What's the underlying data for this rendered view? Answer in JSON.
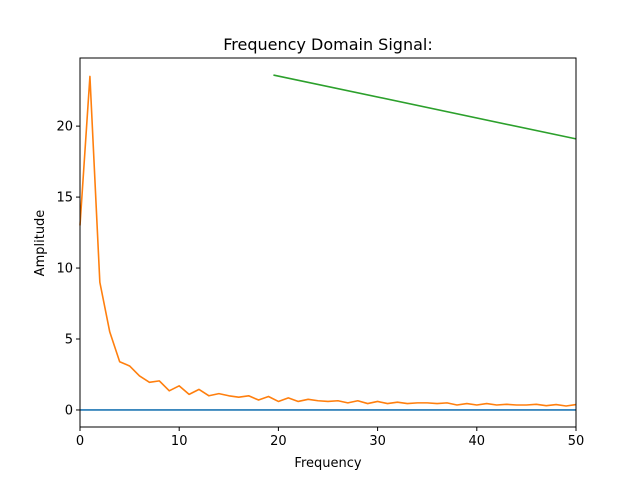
{
  "chart_data": {
    "type": "line",
    "title": "Frequency Domain Signal:",
    "xlabel": "Frequency",
    "ylabel": "Amplitude",
    "xlim": [
      0,
      50
    ],
    "ylim": [
      -1.2,
      24.8
    ],
    "xticks": [
      0,
      10,
      20,
      30,
      40,
      50
    ],
    "yticks": [
      0,
      5,
      10,
      15,
      20
    ],
    "ytick_labels": [
      "0",
      "5",
      "10",
      "15",
      "20"
    ],
    "grid": false,
    "series": [
      {
        "color": "#1f77b4",
        "x": [
          0,
          50
        ],
        "y": [
          0,
          0
        ]
      },
      {
        "color": "#ff7f0e",
        "x": [
          0,
          1,
          2,
          3,
          4,
          5,
          6,
          7,
          8,
          9,
          10,
          11,
          12,
          13,
          14,
          15,
          16,
          17,
          18,
          19,
          20,
          21,
          22,
          23,
          24,
          25,
          26,
          27,
          28,
          29,
          30,
          31,
          32,
          33,
          34,
          35,
          36,
          37,
          38,
          39,
          40,
          41,
          42,
          43,
          44,
          45,
          46,
          47,
          48,
          49,
          50
        ],
        "y": [
          13.0,
          23.5,
          9.0,
          5.5,
          3.4,
          3.1,
          2.4,
          1.95,
          2.05,
          1.35,
          1.7,
          1.1,
          1.45,
          1.0,
          1.15,
          1.0,
          0.9,
          1.0,
          0.7,
          0.95,
          0.6,
          0.85,
          0.6,
          0.75,
          0.65,
          0.6,
          0.65,
          0.5,
          0.65,
          0.45,
          0.6,
          0.45,
          0.55,
          0.45,
          0.5,
          0.5,
          0.45,
          0.5,
          0.35,
          0.45,
          0.35,
          0.45,
          0.35,
          0.4,
          0.35,
          0.35,
          0.4,
          0.3,
          0.38,
          0.28,
          0.38
        ]
      },
      {
        "color": "#2ca02c",
        "x": [
          19.5,
          50
        ],
        "y": [
          23.6,
          19.1
        ]
      }
    ]
  }
}
